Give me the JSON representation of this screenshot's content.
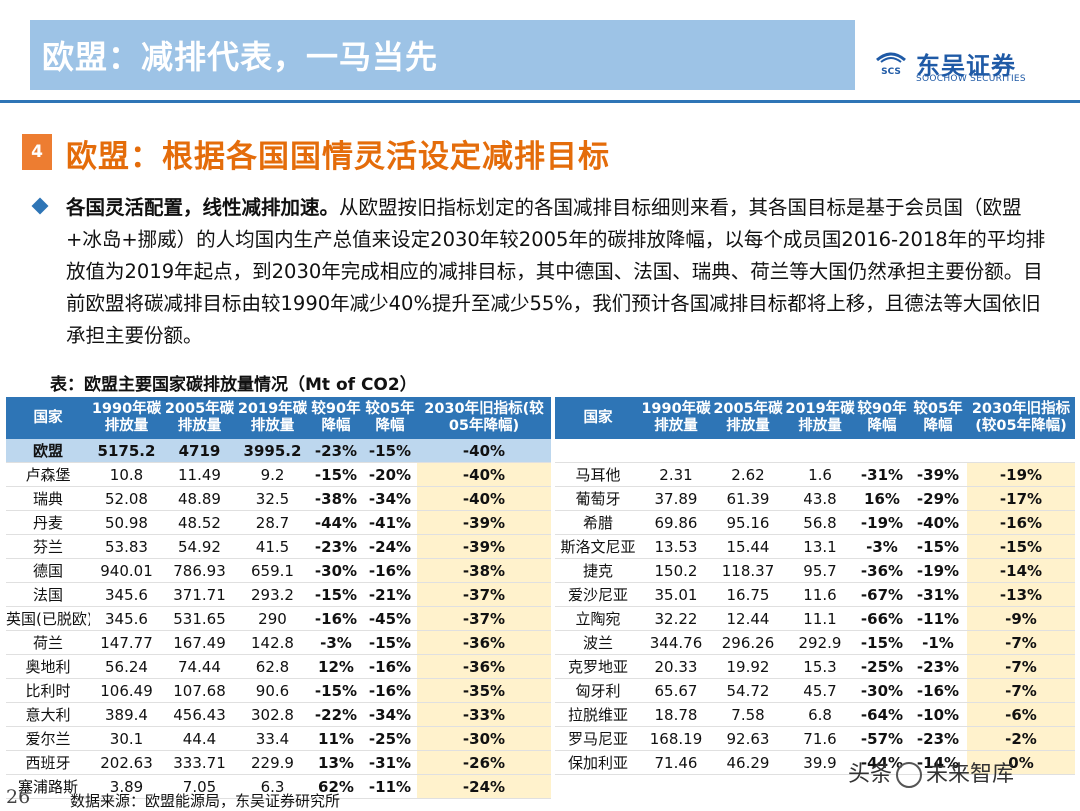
{
  "header": {
    "title": "欧盟：减排代表，一马当先"
  },
  "logo": {
    "name_cn": "东吴证券",
    "name_en": "SOOCHOW SECURITIES",
    "mark_text": "SCS",
    "color": "#1f5aa6"
  },
  "section": {
    "number": "4",
    "title": "欧盟：根据各国国情灵活设定减排目标"
  },
  "paragraph": {
    "lead": "各国灵活配置，线性减排加速。",
    "body": "从欧盟按旧指标划定的各国减排目标细则来看，其各国目标是基于会员国（欧盟+冰岛+挪威）的人均国内生产总值来设定2030年较2005年的碳排放降幅，以每个成员国2016-2018年的平均排放值为2019年起点，到2030年完成相应的减排目标，其中德国、法国、瑞典、荷兰等大国仍然承担主要份额。目前欧盟将碳减排目标由较1990年减少40%提升至减少55%，我们预计各国减排目标都将上移，且德法等大国依旧承担主要份额。"
  },
  "table": {
    "caption": "表：欧盟主要国家碳排放量情况（Mt of CO2）",
    "columns": [
      "国家",
      "1990年碳排放量",
      "2005年碳排放量",
      "2019年碳排放量",
      "较90年降幅",
      "较05年降幅",
      "2030年旧指标(较05年降幅)"
    ],
    "left_rows": [
      [
        "欧盟",
        "5175.2",
        "4719",
        "3995.2",
        "-23%",
        "-15%",
        "-40%"
      ],
      [
        "卢森堡",
        "10.8",
        "11.49",
        "9.2",
        "-15%",
        "-20%",
        "-40%"
      ],
      [
        "瑞典",
        "52.08",
        "48.89",
        "32.5",
        "-38%",
        "-34%",
        "-40%"
      ],
      [
        "丹麦",
        "50.98",
        "48.52",
        "28.7",
        "-44%",
        "-41%",
        "-39%"
      ],
      [
        "芬兰",
        "53.83",
        "54.92",
        "41.5",
        "-23%",
        "-24%",
        "-39%"
      ],
      [
        "德国",
        "940.01",
        "786.93",
        "659.1",
        "-30%",
        "-16%",
        "-38%"
      ],
      [
        "法国",
        "345.6",
        "371.71",
        "293.2",
        "-15%",
        "-21%",
        "-37%"
      ],
      [
        "英国(已脱欧)",
        "345.6",
        "531.65",
        "290",
        "-16%",
        "-45%",
        "-37%"
      ],
      [
        "荷兰",
        "147.77",
        "167.49",
        "142.8",
        "-3%",
        "-15%",
        "-36%"
      ],
      [
        "奥地利",
        "56.24",
        "74.44",
        "62.8",
        "12%",
        "-16%",
        "-36%"
      ],
      [
        "比利时",
        "106.49",
        "107.68",
        "90.6",
        "-15%",
        "-16%",
        "-35%"
      ],
      [
        "意大利",
        "389.4",
        "456.43",
        "302.8",
        "-22%",
        "-34%",
        "-33%"
      ],
      [
        "爱尔兰",
        "30.1",
        "44.4",
        "33.4",
        "11%",
        "-25%",
        "-30%"
      ],
      [
        "西班牙",
        "202.63",
        "333.71",
        "229.9",
        "13%",
        "-31%",
        "-26%"
      ],
      [
        "塞浦路斯",
        "3.89",
        "7.05",
        "6.3",
        "62%",
        "-11%",
        "-24%"
      ]
    ],
    "right_rows": [
      [
        "",
        "",
        "",
        "",
        "",
        "",
        ""
      ],
      [
        "马耳他",
        "2.31",
        "2.62",
        "1.6",
        "-31%",
        "-39%",
        "-19%"
      ],
      [
        "葡萄牙",
        "37.89",
        "61.39",
        "43.8",
        "16%",
        "-29%",
        "-17%"
      ],
      [
        "希腊",
        "69.86",
        "95.16",
        "56.8",
        "-19%",
        "-40%",
        "-16%"
      ],
      [
        "斯洛文尼亚",
        "13.53",
        "15.44",
        "13.1",
        "-3%",
        "-15%",
        "-15%"
      ],
      [
        "捷克",
        "150.2",
        "118.37",
        "95.7",
        "-36%",
        "-19%",
        "-14%"
      ],
      [
        "爱沙尼亚",
        "35.01",
        "16.75",
        "11.6",
        "-67%",
        "-31%",
        "-13%"
      ],
      [
        "立陶宛",
        "32.22",
        "12.44",
        "11.1",
        "-66%",
        "-11%",
        "-9%"
      ],
      [
        "波兰",
        "344.76",
        "296.26",
        "292.9",
        "-15%",
        "-1%",
        "-7%"
      ],
      [
        "克罗地亚",
        "20.33",
        "19.92",
        "15.3",
        "-25%",
        "-23%",
        "-7%"
      ],
      [
        "匈牙利",
        "65.67",
        "54.72",
        "45.7",
        "-30%",
        "-16%",
        "-7%"
      ],
      [
        "拉脱维亚",
        "18.78",
        "7.58",
        "6.8",
        "-64%",
        "-10%",
        "-6%"
      ],
      [
        "罗马尼亚",
        "168.19",
        "92.63",
        "71.6",
        "-57%",
        "-23%",
        "-2%"
      ],
      [
        "保加利亚",
        "71.46",
        "46.29",
        "39.9",
        "-44%",
        "-14%",
        "0%"
      ]
    ]
  },
  "footer": {
    "source": "数据来源：欧盟能源局，东吴证券研究所",
    "page": "26"
  },
  "watermark": {
    "text_left": "头条",
    "text_right": "未来智库"
  },
  "colors": {
    "title_bar": "#9dc3e6",
    "accent_orange": "#ed7d31",
    "table_header": "#2e75b6",
    "highlight": "#fff2cc"
  }
}
